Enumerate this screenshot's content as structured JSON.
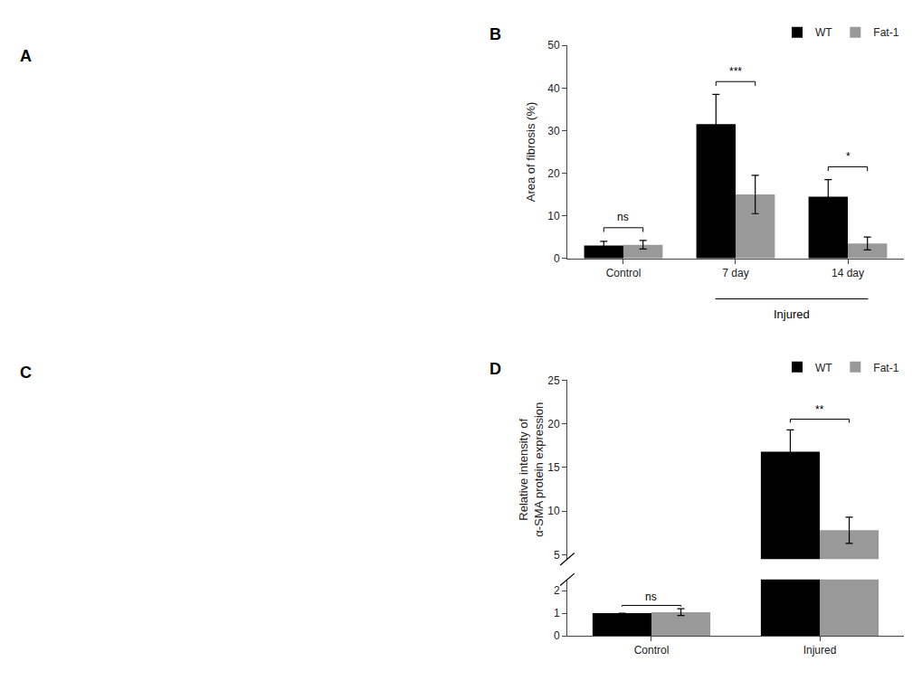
{
  "chart_data": [
    {
      "type": "image",
      "title": "A"
    },
    {
      "type": "bar",
      "title": "B",
      "categories": [
        "Control",
        "7 day",
        "14 day"
      ],
      "series": [
        {
          "name": "WT",
          "color": "#000000",
          "values": [
            3.0,
            31.5,
            14.5
          ],
          "errors": [
            1.0,
            7.0,
            4.0
          ]
        },
        {
          "name": "Fat-1",
          "color": "#999999",
          "values": [
            3.2,
            15.0,
            3.5
          ],
          "errors": [
            1.0,
            4.5,
            1.5
          ]
        }
      ],
      "ylabel": "Area of fibrosis (%)",
      "ylim": [
        0,
        50
      ],
      "yticks": [
        0,
        10,
        20,
        30,
        40,
        50
      ],
      "significance": [
        "ns",
        "***",
        "*"
      ],
      "annotations": [
        {
          "text": "Injured",
          "categories": [
            "7 day",
            "14 day"
          ]
        }
      ],
      "legend": "upper right",
      "grid": false
    },
    {
      "type": "image",
      "title": "C"
    },
    {
      "type": "bar",
      "title": "D",
      "categories": [
        "Control",
        "Injured"
      ],
      "series": [
        {
          "name": "WT",
          "color": "#000000",
          "values": [
            1.0,
            16.8
          ],
          "errors": [
            0.0,
            2.5
          ]
        },
        {
          "name": "Fat-1",
          "color": "#999999",
          "values": [
            1.05,
            7.8
          ],
          "errors": [
            0.15,
            1.5
          ]
        }
      ],
      "ylabel": "Relative intensity of\nα-SMA protein expression",
      "ylim": [
        [
          0,
          2.5
        ],
        [
          4.5,
          25
        ]
      ],
      "yticks": [
        [
          0,
          1,
          2
        ],
        [
          5,
          10,
          15,
          20,
          25
        ]
      ],
      "significance": [
        "ns",
        "**"
      ],
      "legend": "upper right",
      "grid": false
    }
  ]
}
